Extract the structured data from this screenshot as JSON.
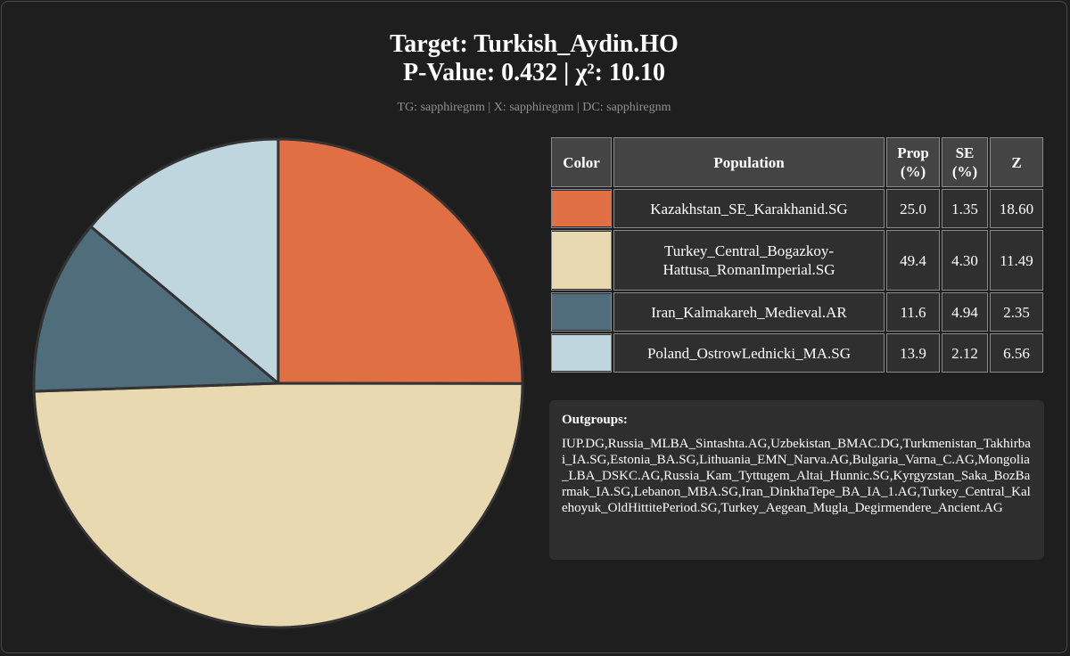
{
  "title_line1": "Target: Turkish_Aydin.HO",
  "title_line2": "P-Value: 0.432 | χ²: 10.10",
  "subtitle": "TG: sapphiregnm | X: sapphiregnm | DC: sapphiregnm",
  "table": {
    "headers": {
      "color": "Color",
      "population": "Population",
      "prop_line1": "Prop",
      "prop_line2": "(%)",
      "se_line1": "SE",
      "se_line2": "(%)",
      "z": "Z"
    },
    "rows": [
      {
        "population": "Kazakhstan_SE_Karakhanid.SG",
        "prop": "25.0",
        "se": "1.35",
        "z": "18.60",
        "color": "#e07044"
      },
      {
        "population": "Turkey_Central_Bogazkoy-Hattusa_RomanImperial.SG",
        "prop": "49.4",
        "se": "4.30",
        "z": "11.49",
        "color": "#e8d9b0"
      },
      {
        "population": "Iran_Kalmakareh_Medieval.AR",
        "prop": "11.6",
        "se": "4.94",
        "z": "2.35",
        "color": "#4f6d7a"
      },
      {
        "population": "Poland_OstrowLednicki_MA.SG",
        "prop": "13.9",
        "se": "2.12",
        "z": "6.56",
        "color": "#c0d6df"
      }
    ]
  },
  "outgroups": {
    "heading": "Outgroups:",
    "text": "IUP.DG,Russia_MLBA_Sintashta.AG,Uzbekistan_BMAC.DG,Turkmenistan_Takhirbai_IA.SG,Estonia_BA.SG,Lithuania_EMN_Narva.AG,Bulgaria_Varna_C.AG,Mongolia_LBA_DSKC.AG,Russia_Kam_Tyttugem_Altai_Hunnic.SG,Kyrgyzstan_Saka_BozBarmak_IA.SG,Lebanon_MBA.SG,Iran_DinkhaTepe_BA_IA_1.AG,Turkey_Central_Kalehoyuk_OldHittitePeriod.SG,Turkey_Aegean_Mugla_Degirmendere_Ancient.AG"
  },
  "chart_data": {
    "type": "pie",
    "categories": [
      "Kazakhstan_SE_Karakhanid.SG",
      "Turkey_Central_Bogazkoy-Hattusa_RomanImperial.SG",
      "Iran_Kalmakareh_Medieval.AR",
      "Poland_OstrowLednicki_MA.SG"
    ],
    "values": [
      25.0,
      49.4,
      11.6,
      13.9
    ],
    "colors": [
      "#e07044",
      "#e8d9b0",
      "#4f6d7a",
      "#c0d6df"
    ],
    "start_angle_deg": 0,
    "direction": "clockwise"
  }
}
